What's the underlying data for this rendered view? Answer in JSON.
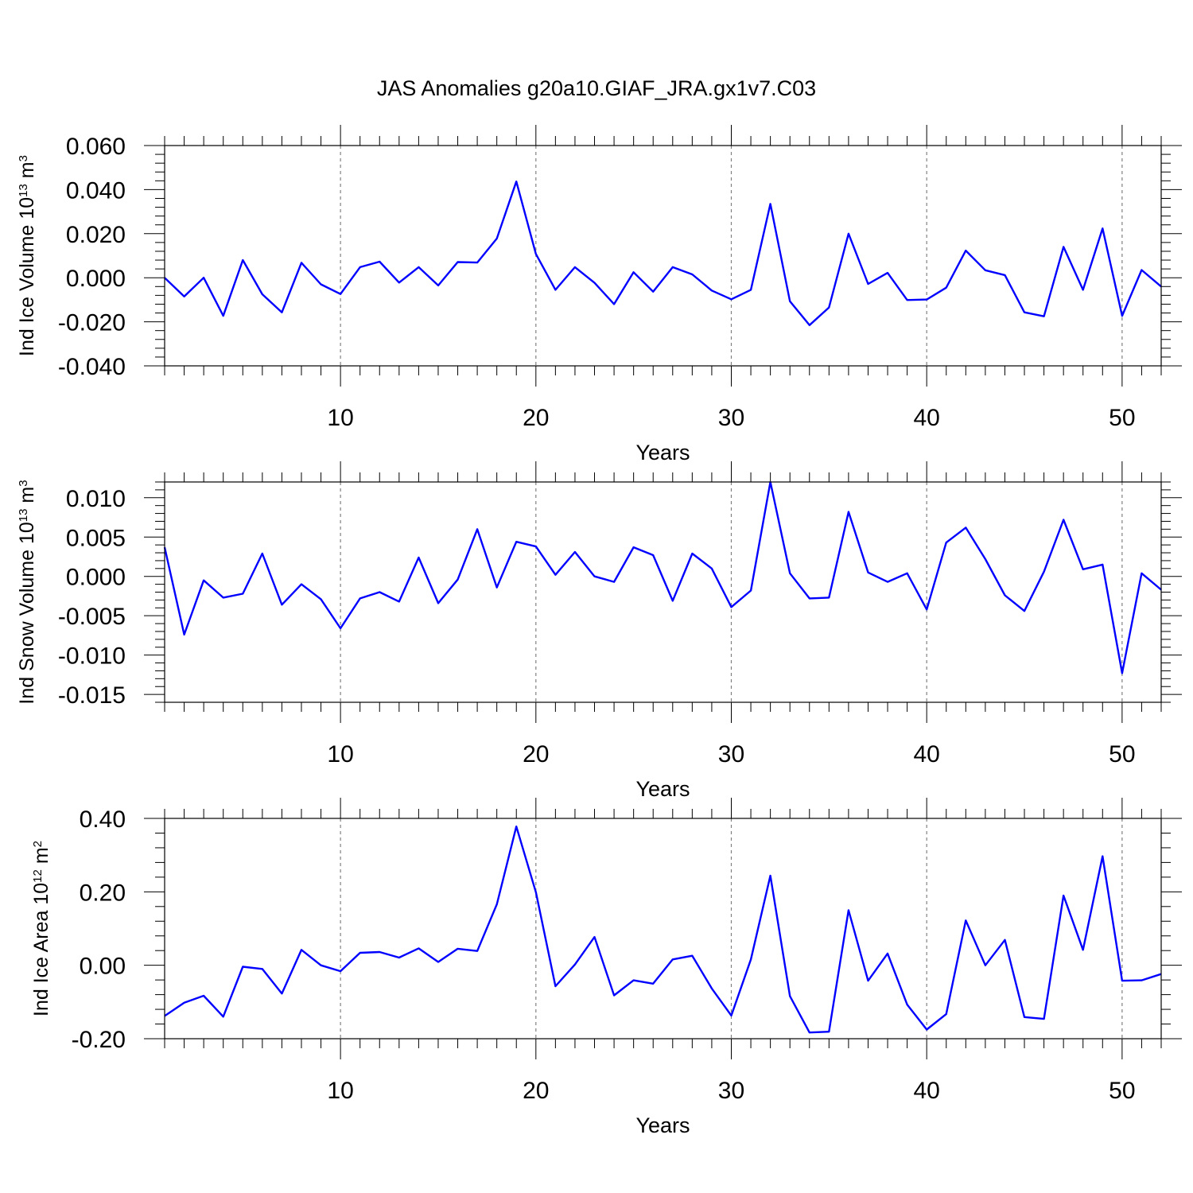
{
  "figure": {
    "title": "JAS Anomalies g20a10.GIAF_JRA.gx1v7.C03",
    "line_color": "#0000ff"
  },
  "chart_data": [
    {
      "type": "line",
      "xlabel": "Years",
      "ylabel": {
        "main": "Ind Ice Volume 10",
        "exp": "13",
        "unit_pre": " m",
        "unit_exp": "3"
      },
      "xlim": [
        1,
        52
      ],
      "ylim": [
        -0.04,
        0.06
      ],
      "xticks": [
        10,
        20,
        30,
        40,
        50
      ],
      "xtick_labels": [
        "10",
        "20",
        "30",
        "40",
        "50"
      ],
      "yticks": [
        -0.04,
        -0.02,
        0.0,
        0.02,
        0.04,
        0.06
      ],
      "ytick_labels": [
        "-0.040",
        "-0.020",
        "0.000",
        "0.020",
        "0.040",
        "0.060"
      ],
      "grid": "vertical dashed at major x ticks",
      "x": [
        1,
        2,
        3,
        4,
        5,
        6,
        7,
        8,
        9,
        10,
        11,
        12,
        13,
        14,
        15,
        16,
        17,
        18,
        19,
        20,
        21,
        22,
        23,
        24,
        25,
        26,
        27,
        28,
        29,
        30,
        31,
        32,
        33,
        34,
        35,
        36,
        37,
        38,
        39,
        40,
        41,
        42,
        43,
        44,
        45,
        46,
        47,
        48,
        49,
        50,
        51,
        52
      ],
      "values": [
        0.0,
        -0.0085,
        0.0,
        -0.0173,
        0.008,
        -0.0075,
        -0.0157,
        0.0068,
        -0.003,
        -0.0074,
        0.0048,
        0.0073,
        -0.0022,
        0.0048,
        -0.0035,
        0.0071,
        0.0069,
        0.0178,
        0.0437,
        0.0108,
        -0.0055,
        0.0048,
        -0.0023,
        -0.012,
        0.0025,
        -0.0063,
        0.0048,
        0.0015,
        -0.0058,
        -0.0098,
        -0.0055,
        0.0335,
        -0.0107,
        -0.0215,
        -0.0135,
        0.02,
        -0.0028,
        0.0022,
        -0.0101,
        -0.0099,
        -0.0045,
        0.0123,
        0.0034,
        0.0012,
        -0.0157,
        -0.0175,
        0.014,
        -0.0055,
        0.0224,
        -0.0173,
        0.0035,
        -0.004
      ]
    },
    {
      "type": "line",
      "xlabel": "Years",
      "ylabel": {
        "main": "Ind Snow Volume 10",
        "exp": "13",
        "unit_pre": " m",
        "unit_exp": "3"
      },
      "xlim": [
        1,
        52
      ],
      "ylim": [
        -0.016,
        0.012
      ],
      "xticks": [
        10,
        20,
        30,
        40,
        50
      ],
      "xtick_labels": [
        "10",
        "20",
        "30",
        "40",
        "50"
      ],
      "yticks": [
        -0.015,
        -0.01,
        -0.005,
        0.0,
        0.005,
        0.01
      ],
      "ytick_labels": [
        "-0.015",
        "-0.010",
        "-0.005",
        "0.000",
        "0.005",
        "0.010"
      ],
      "grid": "vertical dashed at major x ticks",
      "x": [
        1,
        2,
        3,
        4,
        5,
        6,
        7,
        8,
        9,
        10,
        11,
        12,
        13,
        14,
        15,
        16,
        17,
        18,
        19,
        20,
        21,
        22,
        23,
        24,
        25,
        26,
        27,
        28,
        29,
        30,
        31,
        32,
        33,
        34,
        35,
        36,
        37,
        38,
        39,
        40,
        41,
        42,
        43,
        44,
        45,
        46,
        47,
        48,
        49,
        50,
        51,
        52
      ],
      "values": [
        0.0037,
        -0.0074,
        -0.0005,
        -0.0027,
        -0.0022,
        0.0029,
        -0.0036,
        -0.001,
        -0.0029,
        -0.0066,
        -0.0028,
        -0.002,
        -0.0032,
        0.0024,
        -0.0034,
        -0.0004,
        0.006,
        -0.0014,
        0.0044,
        0.0038,
        0.0002,
        0.0031,
        0.0,
        -0.0007,
        0.0037,
        0.0027,
        -0.0031,
        0.0029,
        0.001,
        -0.0039,
        -0.0018,
        0.012,
        0.0004,
        -0.0028,
        -0.0027,
        0.0082,
        0.0005,
        -0.0007,
        0.0004,
        -0.0042,
        0.0043,
        0.0062,
        0.0022,
        -0.0024,
        -0.0044,
        0.0006,
        0.0072,
        0.0009,
        0.0015,
        -0.0123,
        0.0004,
        -0.0017
      ]
    },
    {
      "type": "line",
      "xlabel": "Years",
      "ylabel": {
        "main": "Ind Ice Area 10",
        "exp": "12",
        "unit_pre": " m",
        "unit_exp": "2"
      },
      "xlim": [
        1,
        52
      ],
      "ylim": [
        -0.2,
        0.4
      ],
      "xticks": [
        10,
        20,
        30,
        40,
        50
      ],
      "xtick_labels": [
        "10",
        "20",
        "30",
        "40",
        "50"
      ],
      "yticks": [
        -0.2,
        0.0,
        0.2,
        0.4
      ],
      "ytick_labels": [
        "-0.20",
        "0.00",
        "0.20",
        "0.40"
      ],
      "grid": "vertical dashed at major x ticks",
      "x": [
        1,
        2,
        3,
        4,
        5,
        6,
        7,
        8,
        9,
        10,
        11,
        12,
        13,
        14,
        15,
        16,
        17,
        18,
        19,
        20,
        21,
        22,
        23,
        24,
        25,
        26,
        27,
        28,
        29,
        30,
        31,
        32,
        33,
        34,
        35,
        36,
        37,
        38,
        39,
        40,
        41,
        42,
        43,
        44,
        45,
        46,
        47,
        48,
        49,
        50,
        51,
        52
      ],
      "values": [
        -0.138,
        -0.102,
        -0.083,
        -0.14,
        -0.004,
        -0.01,
        -0.077,
        0.042,
        0.0,
        -0.016,
        0.034,
        0.036,
        0.021,
        0.046,
        0.009,
        0.045,
        0.039,
        0.166,
        0.378,
        0.199,
        -0.057,
        0.002,
        0.077,
        -0.082,
        -0.041,
        -0.05,
        0.016,
        0.026,
        -0.063,
        -0.137,
        0.016,
        0.244,
        -0.084,
        -0.183,
        -0.181,
        0.15,
        -0.042,
        0.032,
        -0.107,
        -0.175,
        -0.133,
        0.122,
        0.0,
        0.069,
        -0.141,
        -0.146,
        0.19,
        0.042,
        0.297,
        -0.042,
        -0.041,
        -0.024
      ]
    }
  ]
}
